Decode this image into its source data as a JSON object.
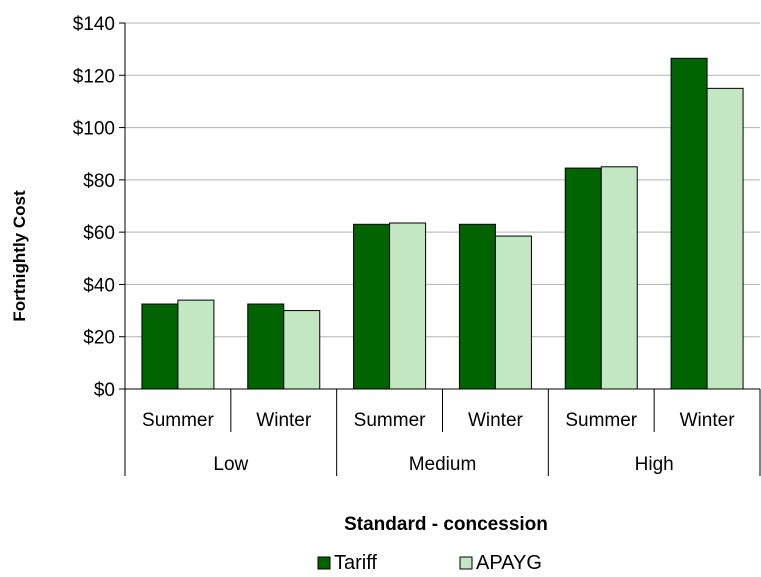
{
  "chart_data": {
    "type": "bar",
    "title": "",
    "xlabel": "Standard - concession",
    "ylabel": "Fortnightly Cost",
    "ylim": [
      0,
      140
    ],
    "yticks": [
      0,
      20,
      40,
      60,
      80,
      100,
      120,
      140
    ],
    "ytick_labels": [
      "$0",
      "$20",
      "$40",
      "$60",
      "$80",
      "$100",
      "$120",
      "$140"
    ],
    "grid": true,
    "legend_position": "bottom",
    "groups": [
      {
        "label": "Low",
        "categories": [
          "Summer",
          "Winter"
        ]
      },
      {
        "label": "Medium",
        "categories": [
          "Summer",
          "Winter"
        ]
      },
      {
        "label": "High",
        "categories": [
          "Summer",
          "Winter"
        ]
      }
    ],
    "categories": [
      "Summer",
      "Winter",
      "Summer",
      "Winter",
      "Summer",
      "Winter"
    ],
    "series": [
      {
        "name": "Tariff",
        "color": "#006400",
        "values": [
          32.5,
          32.5,
          63,
          63,
          84.5,
          126.5
        ]
      },
      {
        "name": "APAYG",
        "color": "#c3e6c3",
        "values": [
          34,
          30,
          63.5,
          58.5,
          85,
          115
        ]
      }
    ]
  }
}
